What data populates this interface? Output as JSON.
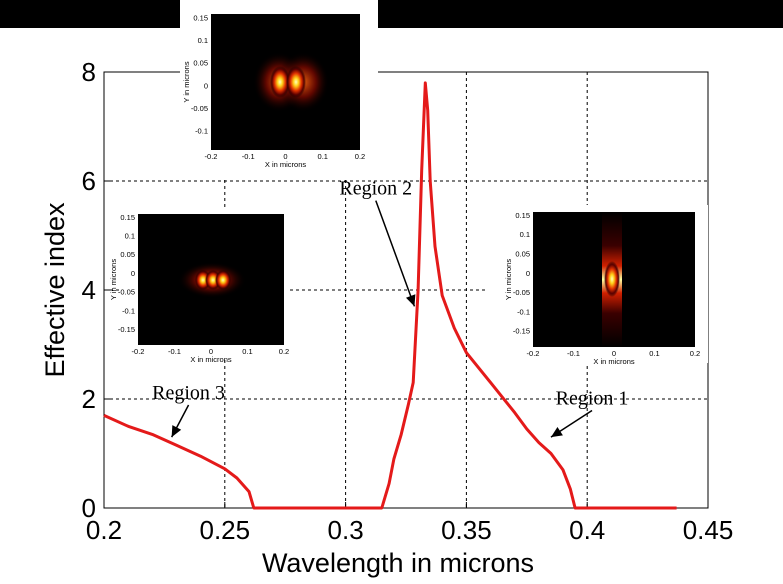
{
  "chart_data": {
    "type": "line",
    "title": "",
    "xlabel": "Wavelength in microns",
    "ylabel": "Effective index",
    "xlim": [
      0.2,
      0.45
    ],
    "ylim": [
      0,
      8
    ],
    "xticks": [
      "0.2",
      "0.25",
      "0.3",
      "0.35",
      "0.4",
      "0.45"
    ],
    "yticks": [
      "0",
      "2",
      "4",
      "6",
      "8"
    ],
    "grid": true,
    "series": [
      {
        "color": "#e41a1a",
        "x": [
          0.2,
          0.21,
          0.22,
          0.23,
          0.24,
          0.25,
          0.255,
          0.26,
          0.262,
          0.27,
          0.28,
          0.29,
          0.3,
          0.31,
          0.315,
          0.318,
          0.32,
          0.323,
          0.326,
          0.328,
          0.33,
          0.3315,
          0.333,
          0.334,
          0.335,
          0.337,
          0.34,
          0.345,
          0.35,
          0.36,
          0.37,
          0.375,
          0.38,
          0.385,
          0.39,
          0.393,
          0.395,
          0.4,
          0.41,
          0.42,
          0.43,
          0.437
        ],
        "y": [
          1.7,
          1.5,
          1.35,
          1.15,
          0.95,
          0.72,
          0.55,
          0.3,
          0.0,
          0.0,
          0.0,
          0.0,
          0.0,
          0.0,
          0.0,
          0.45,
          0.9,
          1.35,
          1.9,
          2.3,
          4.0,
          6.2,
          7.8,
          7.3,
          6.0,
          4.8,
          3.9,
          3.3,
          2.85,
          2.3,
          1.75,
          1.45,
          1.2,
          1.0,
          0.7,
          0.35,
          0.0,
          0.0,
          0.0,
          0.0,
          0.0,
          0.0
        ]
      }
    ],
    "annotations": [
      {
        "text": "Region 1",
        "x": 0.402,
        "y": 1.9,
        "arrow_to_x": 0.385,
        "arrow_to_y": 1.3
      },
      {
        "text": "Region 2",
        "x": 0.3125,
        "y": 5.75,
        "arrow_to_x": 0.3285,
        "arrow_to_y": 3.7
      },
      {
        "text": "Region 3",
        "x": 0.235,
        "y": 2.0,
        "arrow_to_x": 0.228,
        "arrow_to_y": 1.3
      }
    ],
    "insets": [
      {
        "name": "inset-region-2",
        "xlabel": "X in microns",
        "ylabel": "Y in microns",
        "xticks": [
          "-0.2",
          "-0.1",
          "0",
          "0.1",
          "0.2"
        ],
        "yticks": [
          "0.15",
          "0.1",
          "0.05",
          "0",
          "-0.05",
          "-0.1"
        ],
        "pattern": "two-lobes"
      },
      {
        "name": "inset-region-3",
        "xlabel": "X in microns",
        "ylabel": "Y in microns",
        "xticks": [
          "-0.2",
          "-0.1",
          "0",
          "0.1",
          "0.2"
        ],
        "yticks": [
          "0.15",
          "0.1",
          "0.05",
          "0",
          "-0.05",
          "-0.1",
          "-0.15"
        ],
        "pattern": "multi-lobes"
      },
      {
        "name": "inset-region-1",
        "xlabel": "X in microns",
        "ylabel": "Y in microns",
        "xticks": [
          "-0.2",
          "-0.1",
          "0",
          "0.1",
          "0.2"
        ],
        "yticks": [
          "0.15",
          "0.1",
          "0.05",
          "0",
          "-0.05",
          "-0.1",
          "-0.15"
        ],
        "pattern": "single-lobe"
      }
    ]
  }
}
